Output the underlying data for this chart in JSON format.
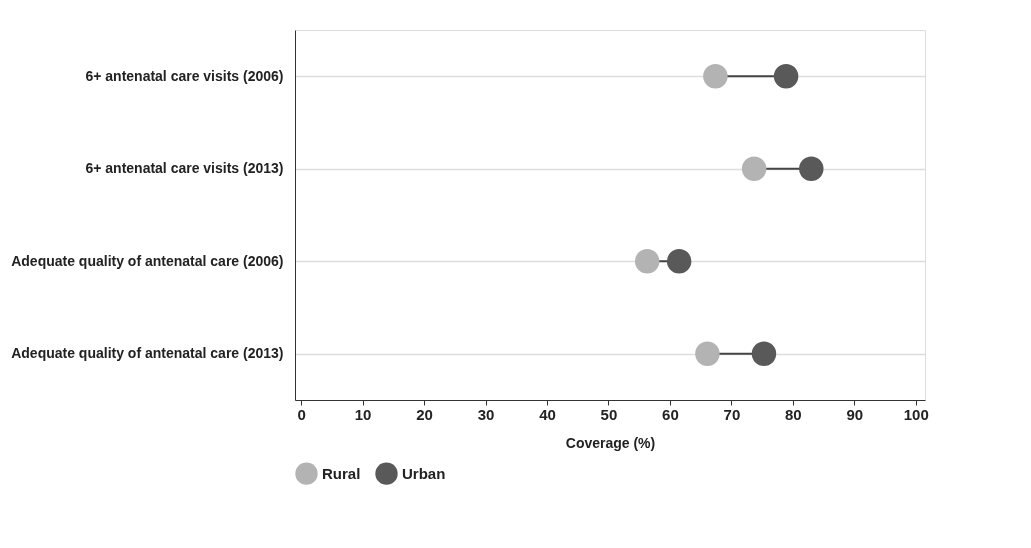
{
  "chart_data": {
    "type": "scatter",
    "orientation": "horizontal",
    "xlabel": "Coverage (%)",
    "categories": [
      "6+ antenatal care visits (2006)",
      "6+ antenatal care visits (2013)",
      "Adequate quality of antenatal care (2006)",
      "Adequate quality of antenatal care (2013)"
    ],
    "series": [
      {
        "name": "Rural",
        "color": "#b3b3b3",
        "values": [
          67.4,
          73.7,
          56.3,
          66.1
        ]
      },
      {
        "name": "Urban",
        "color": "#595959",
        "values": [
          78.9,
          83.0,
          61.5,
          75.3
        ]
      }
    ],
    "xlim": [
      -1,
      101.5
    ],
    "xticks": [
      0,
      10,
      20,
      30,
      40,
      50,
      60,
      70,
      80,
      90,
      100
    ],
    "grid": "y",
    "legend": "bottom",
    "marker": "circle"
  }
}
